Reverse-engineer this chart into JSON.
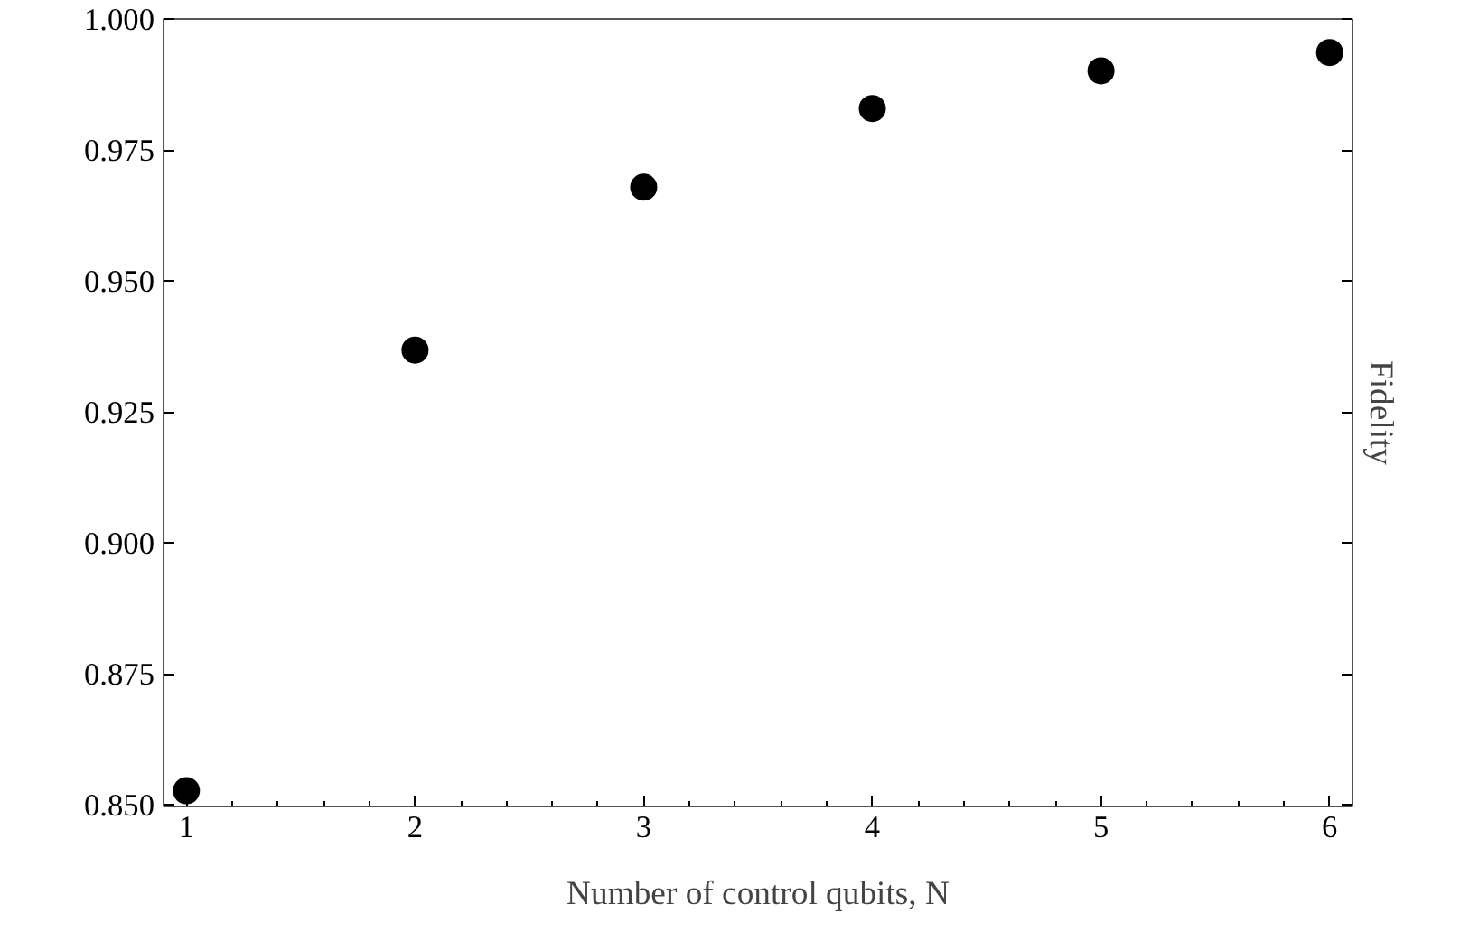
{
  "chart_data": {
    "type": "scatter",
    "xlabel": "Number of control qubits, N",
    "ylabel": "Fidelity",
    "x": [
      1,
      2,
      3,
      4,
      5,
      6
    ],
    "values": [
      0.8527,
      0.9368,
      0.9679,
      0.9829,
      0.9901,
      0.9936
    ],
    "color": "#000000",
    "marker": "circle",
    "xlim": [
      0.9,
      6.1
    ],
    "xticks": [
      1,
      2,
      3,
      4,
      5,
      6
    ],
    "ylim": [
      0.8497,
      1.0
    ],
    "yticks": [
      {
        "value": 0.85,
        "label": "0.850"
      },
      {
        "value": 0.875,
        "label": "0.875"
      },
      {
        "value": 0.9,
        "label": "0.900"
      },
      {
        "value": 0.925,
        "label": "0.925"
      },
      {
        "value": 0.95,
        "label": "0.950"
      },
      {
        "value": 0.975,
        "label": "0.975"
      },
      {
        "value": 1.0,
        "label": "1.000"
      }
    ],
    "grid": false
  }
}
